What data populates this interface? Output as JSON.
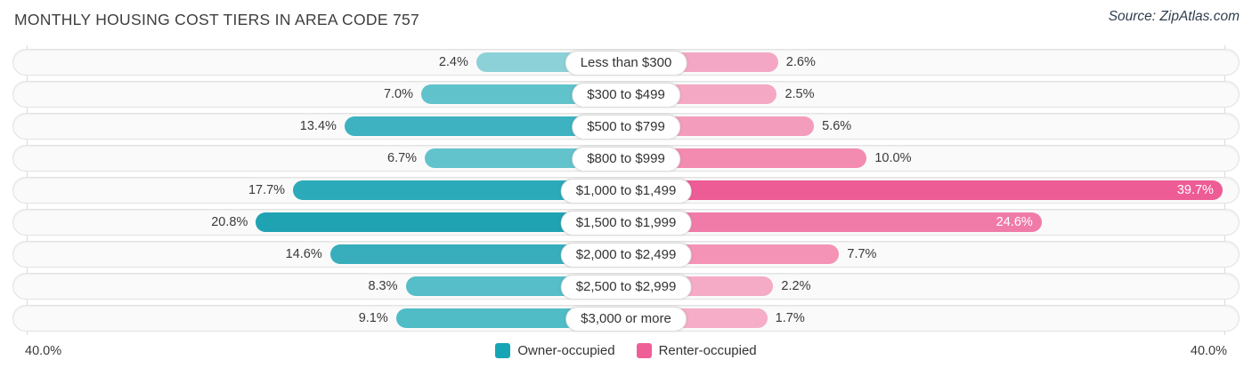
{
  "header": {
    "title": "MONTHLY HOUSING COST TIERS IN AREA CODE 757",
    "source": "Source: ZipAtlas.com"
  },
  "axis": {
    "left_label": "40.0%",
    "right_label": "40.0%",
    "max_percent": 40
  },
  "legend": [
    {
      "label": "Owner-occupied",
      "color": "#16a5b5",
      "swatch": "teal-square"
    },
    {
      "label": "Renter-occupied",
      "color": "#ef5f97",
      "swatch": "pink-square"
    }
  ],
  "chart_data": {
    "type": "bar",
    "subtype": "diverging-horizontal",
    "title": "MONTHLY HOUSING COST TIERS IN AREA CODE 757",
    "categories": [
      "Less than $300",
      "$300 to $499",
      "$500 to $799",
      "$800 to $999",
      "$1,000 to $1,499",
      "$1,500 to $1,999",
      "$2,000 to $2,499",
      "$2,500 to $2,999",
      "$3,000 or more"
    ],
    "series": [
      {
        "name": "Owner-occupied",
        "side": "left",
        "values": [
          2.4,
          7.0,
          13.4,
          6.7,
          17.7,
          20.8,
          14.6,
          8.3,
          9.1
        ],
        "labels": [
          "2.4%",
          "7.0%",
          "13.4%",
          "6.7%",
          "17.7%",
          "20.8%",
          "14.6%",
          "8.3%",
          "9.1%"
        ],
        "colors": [
          "#8dd1d8",
          "#60c2cb",
          "#3eb2c0",
          "#63c3cc",
          "#2baab9",
          "#1fa3b3",
          "#38aebd",
          "#55bec8",
          "#4fbcc6"
        ]
      },
      {
        "name": "Renter-occupied",
        "side": "right",
        "values": [
          2.6,
          2.5,
          5.6,
          10.0,
          39.7,
          24.6,
          7.7,
          2.2,
          1.7
        ],
        "labels": [
          "2.6%",
          "2.5%",
          "5.6%",
          "10.0%",
          "39.7%",
          "24.6%",
          "7.7%",
          "2.2%",
          "1.7%"
        ],
        "colors": [
          "#f4a7c4",
          "#f4a8c4",
          "#f49cbc",
          "#f38bb1",
          "#ee5c95",
          "#f07ba8",
          "#f493b6",
          "#f5aac6",
          "#f5adc8"
        ]
      }
    ],
    "xlim": [
      -40,
      40
    ],
    "grid": "edge-lines-only",
    "legend_position": "bottom-center"
  }
}
